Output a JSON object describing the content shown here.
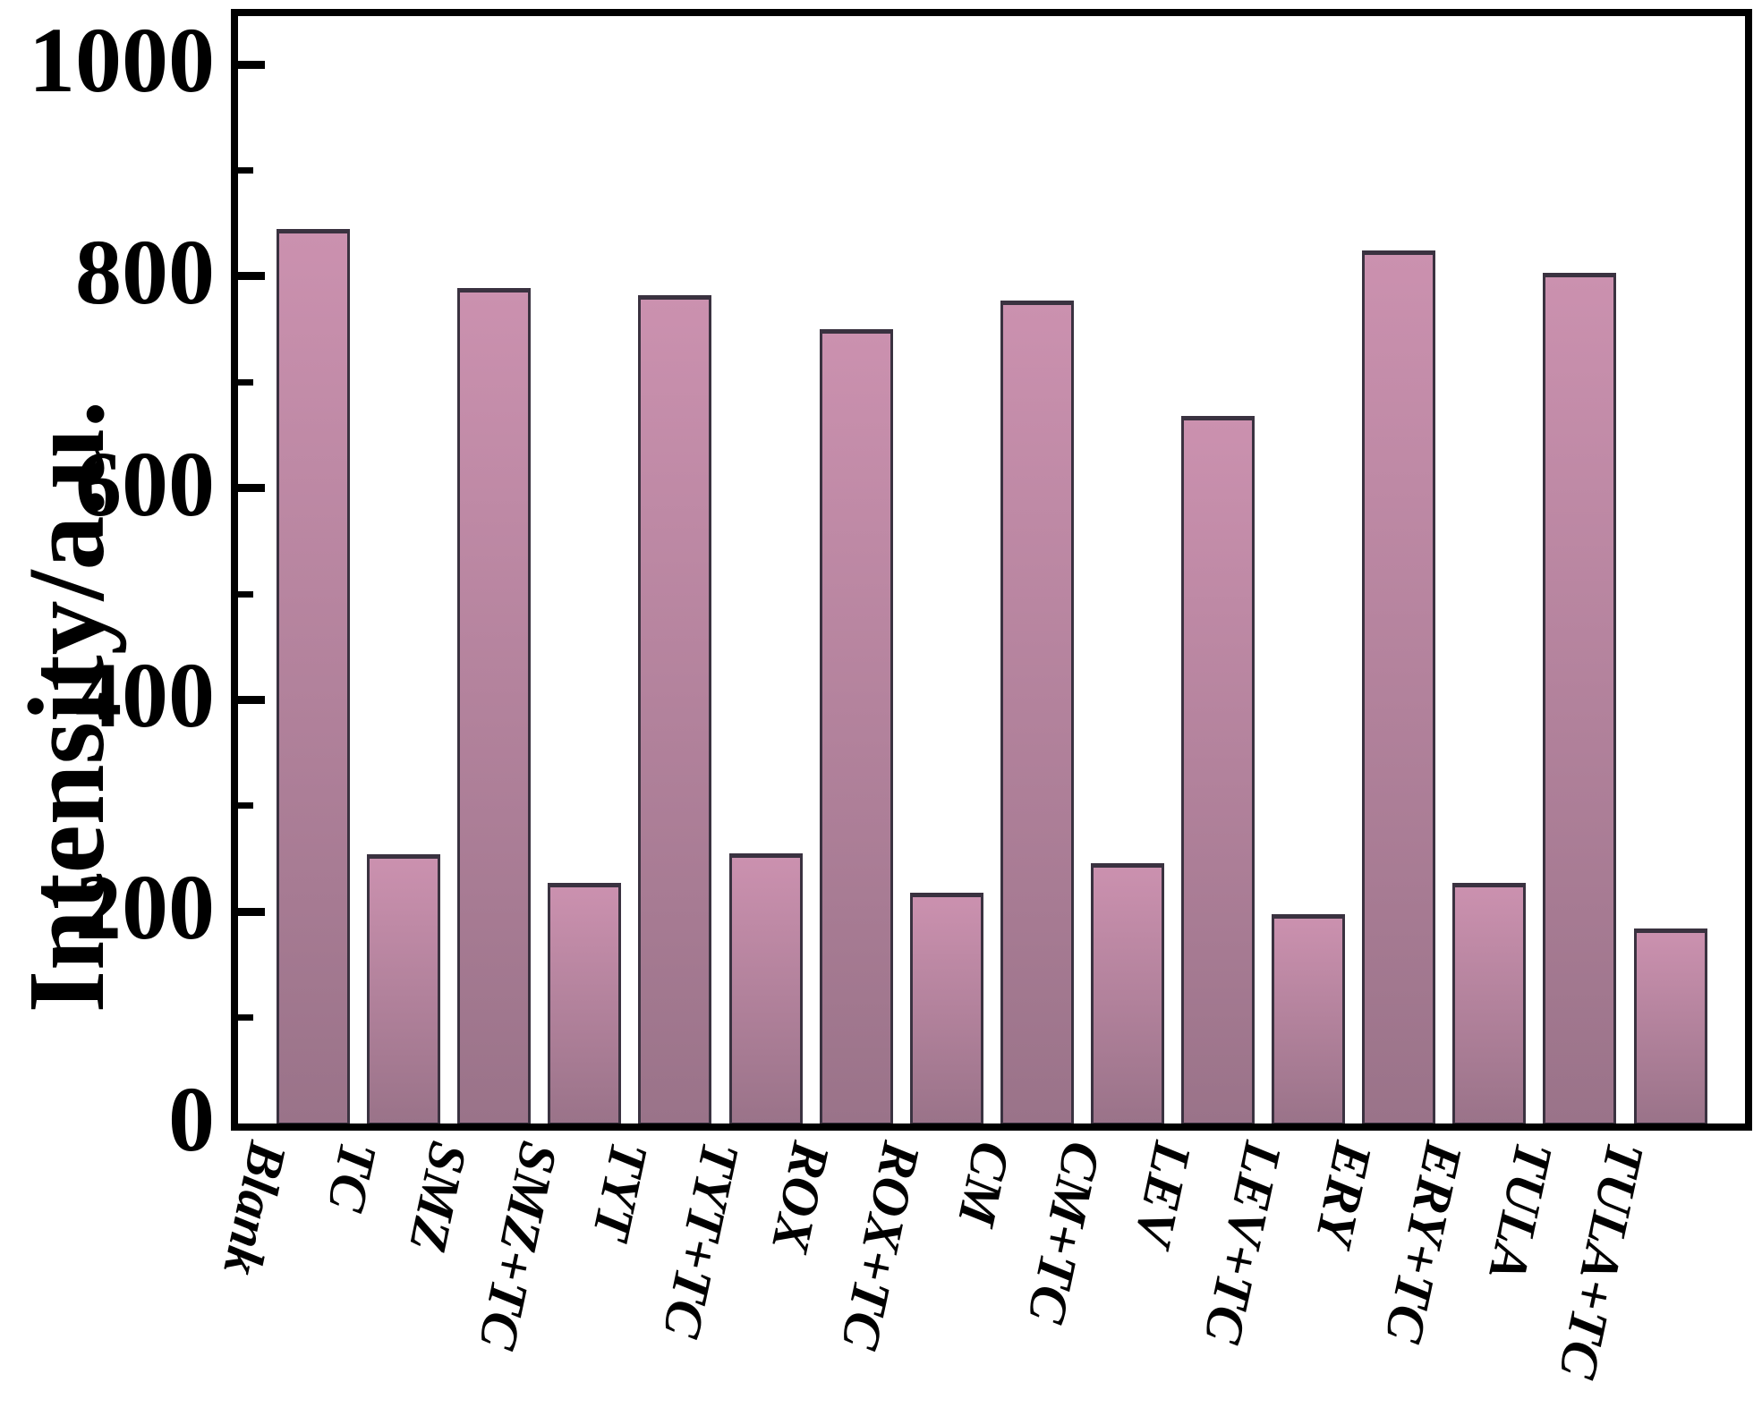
{
  "chart_data": {
    "type": "bar",
    "title": "",
    "xlabel": "",
    "ylabel": "Intensity/a.u.",
    "categories": [
      "Blank",
      "TC",
      "SMZ",
      "SMZ+TC",
      "TYT",
      "TYT+TC",
      "ROX",
      "ROX+TC",
      "CM",
      "CM+TC",
      "LEV",
      "LEV+TC",
      "ERY",
      "ERY+TC",
      "TULA",
      "TULA+TC"
    ],
    "values": [
      845,
      254,
      789,
      227,
      782,
      255,
      750,
      218,
      777,
      246,
      668,
      198,
      824,
      227,
      803,
      184
    ],
    "ylim": [
      0,
      1046
    ],
    "yticks_major": [
      0,
      200,
      400,
      600,
      800,
      1000
    ],
    "yticks_minor": [
      100,
      300,
      500,
      700,
      900
    ],
    "grid": "off",
    "legend": "none",
    "bar_color_top": "#cb91af",
    "bar_color_bottom": "#9a7389",
    "bar_border_color": "#3a3240",
    "axis_color": "#000000",
    "tick_direction": "in"
  }
}
